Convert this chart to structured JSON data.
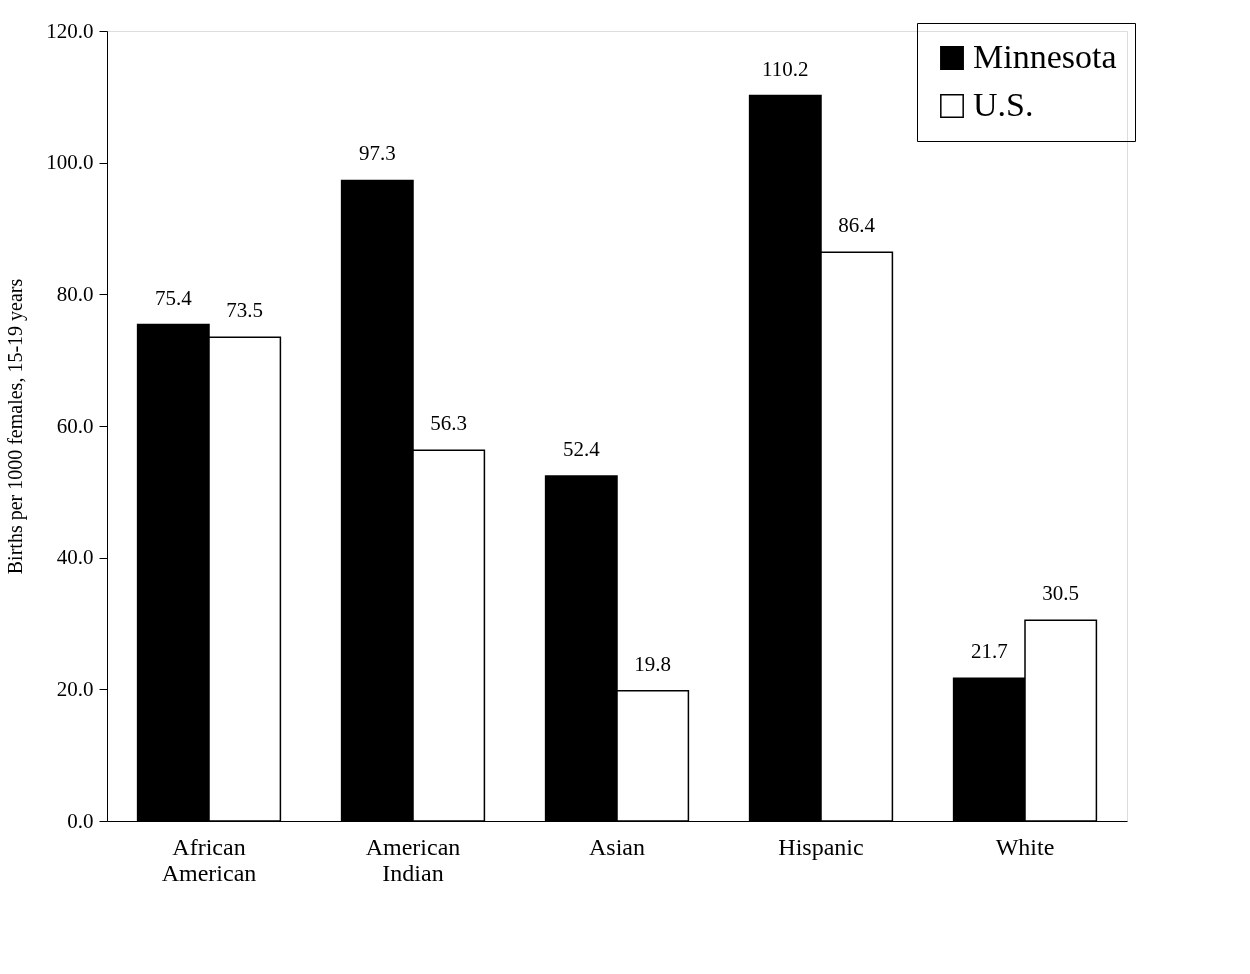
{
  "chart_data": {
    "type": "bar",
    "ylabel": "Births per 1000 females, 15-19 years",
    "categories": [
      "African American",
      "American Indian",
      "Asian",
      "Hispanic",
      "White"
    ],
    "series": [
      {
        "name": "Minnesota",
        "color": "#000000",
        "values": [
          75.4,
          97.3,
          52.4,
          110.2,
          21.7
        ]
      },
      {
        "name": "U.S.",
        "color": "#ffffff",
        "values": [
          73.5,
          56.3,
          19.8,
          86.4,
          30.5
        ]
      }
    ],
    "ylim": [
      0,
      120
    ],
    "yticks": [
      {
        "value": 0,
        "label": "0.0"
      },
      {
        "value": 20,
        "label": "20.0"
      },
      {
        "value": 40,
        "label": "40.0"
      },
      {
        "value": 60,
        "label": "60.0"
      },
      {
        "value": 80,
        "label": "80.0"
      },
      {
        "value": 100,
        "label": "100.0"
      },
      {
        "value": 120,
        "label": "120.0"
      }
    ],
    "data_labels": true,
    "legend": "top right",
    "grid": false
  }
}
